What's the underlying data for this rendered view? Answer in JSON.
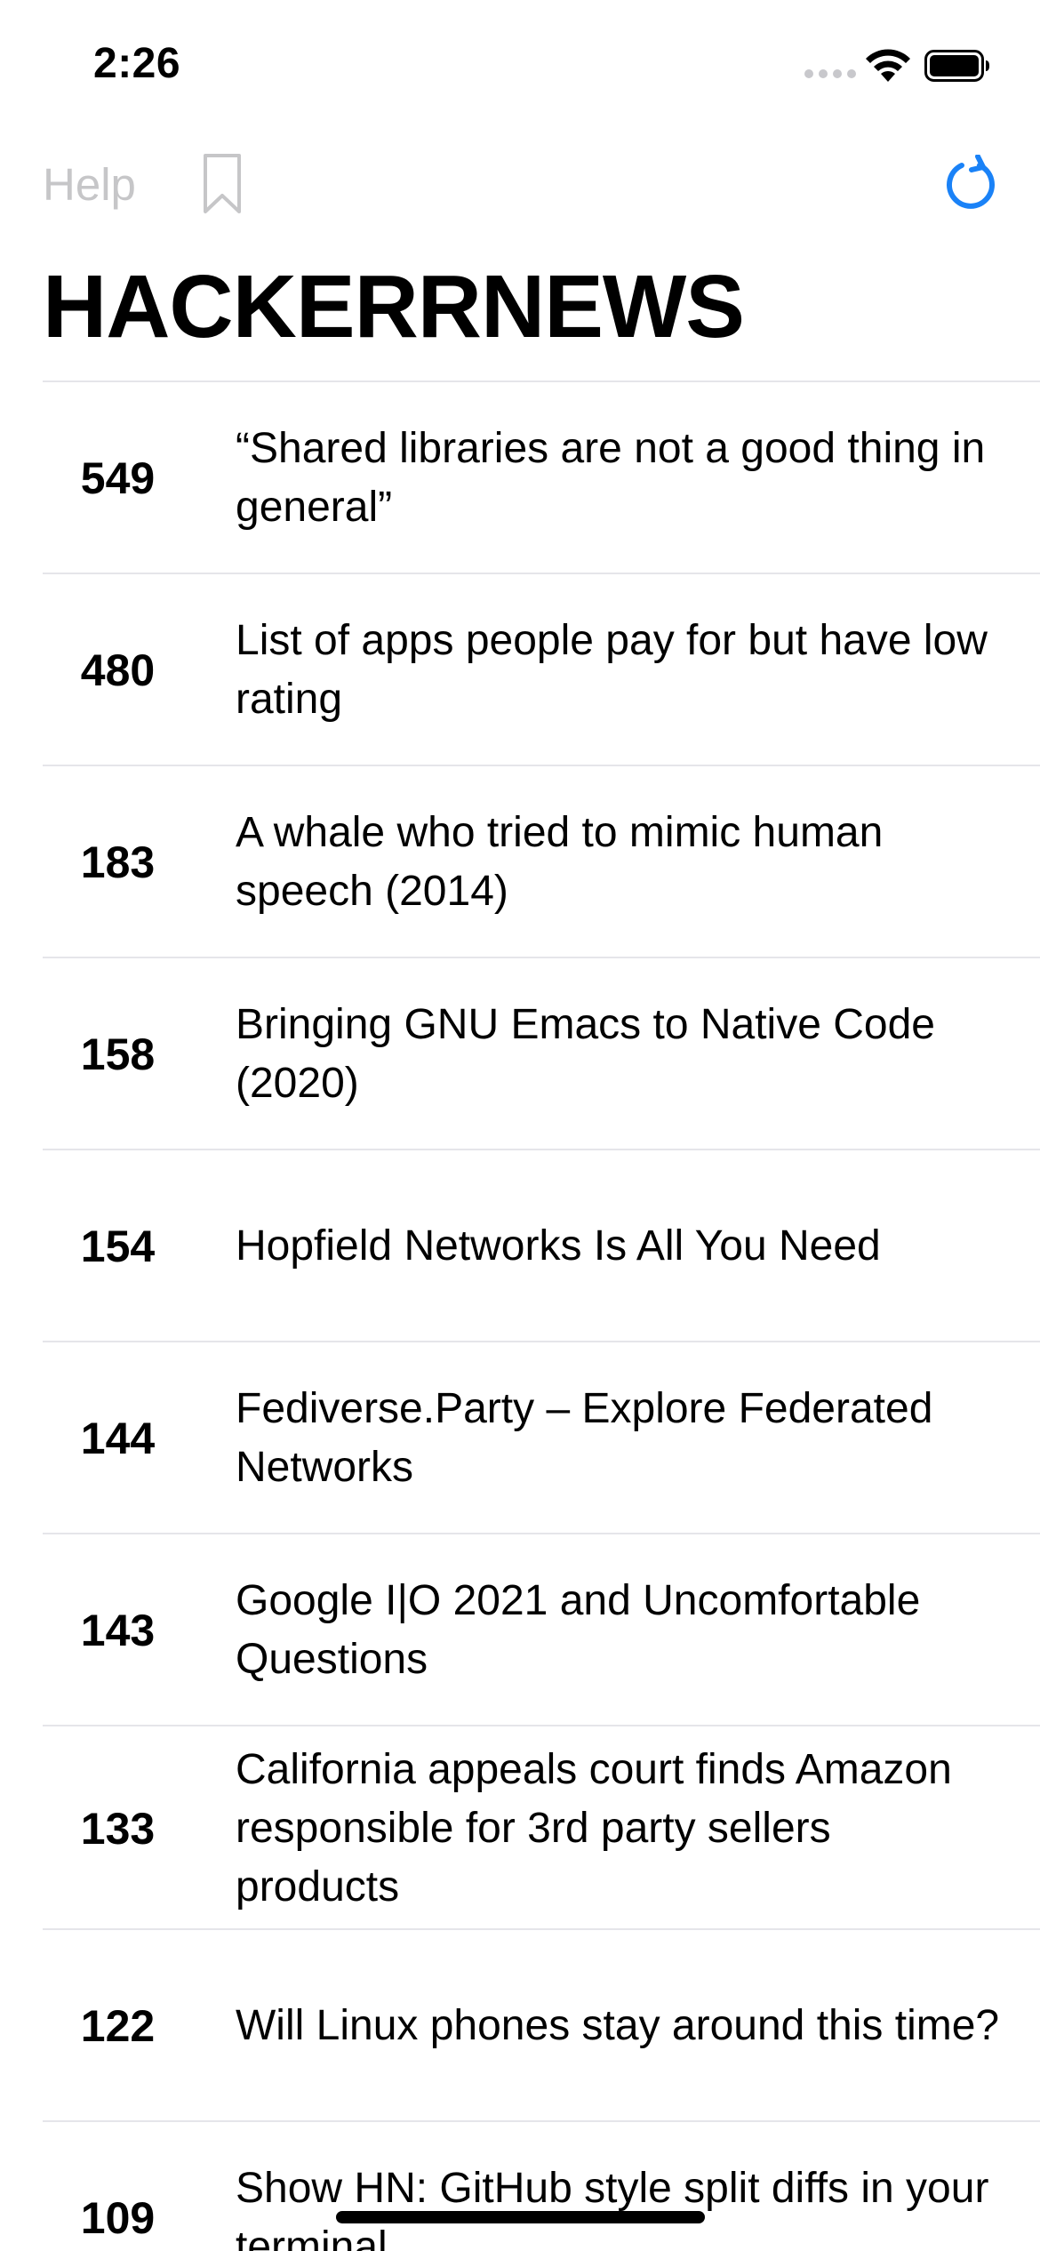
{
  "status_bar": {
    "time": "2:26"
  },
  "nav": {
    "help_label": "Help"
  },
  "header": {
    "title": "HACKERRNEWS"
  },
  "stories": [
    {
      "score": "549",
      "title": "“Shared libraries are not a good thing in general”"
    },
    {
      "score": "480",
      "title": "List of apps people pay for but have low rating"
    },
    {
      "score": "183",
      "title": "A whale who tried to mimic human speech (2014)"
    },
    {
      "score": "158",
      "title": "Bringing GNU Emacs to Native Code (2020)"
    },
    {
      "score": "154",
      "title": "Hopfield Networks Is All You Need"
    },
    {
      "score": "144",
      "title": "Fediverse.Party – Explore Federated Networks"
    },
    {
      "score": "143",
      "title": "Google I|O 2021 and Uncomfortable Questions"
    },
    {
      "score": "133",
      "title": "California appeals court finds Amazon responsible for 3rd party sellers products"
    },
    {
      "score": "122",
      "title": "Will Linux phones stay around this time?"
    },
    {
      "score": "109",
      "title": "Show HN: GitHub style split diffs in your terminal"
    }
  ],
  "colors": {
    "accent": "#1a82f7",
    "muted": "#c6c6c8",
    "divider": "#e5e5ea"
  },
  "icons": {
    "bookmark": "bookmark-icon",
    "refresh": "refresh-icon",
    "wifi": "wifi-icon",
    "battery": "battery-icon"
  }
}
